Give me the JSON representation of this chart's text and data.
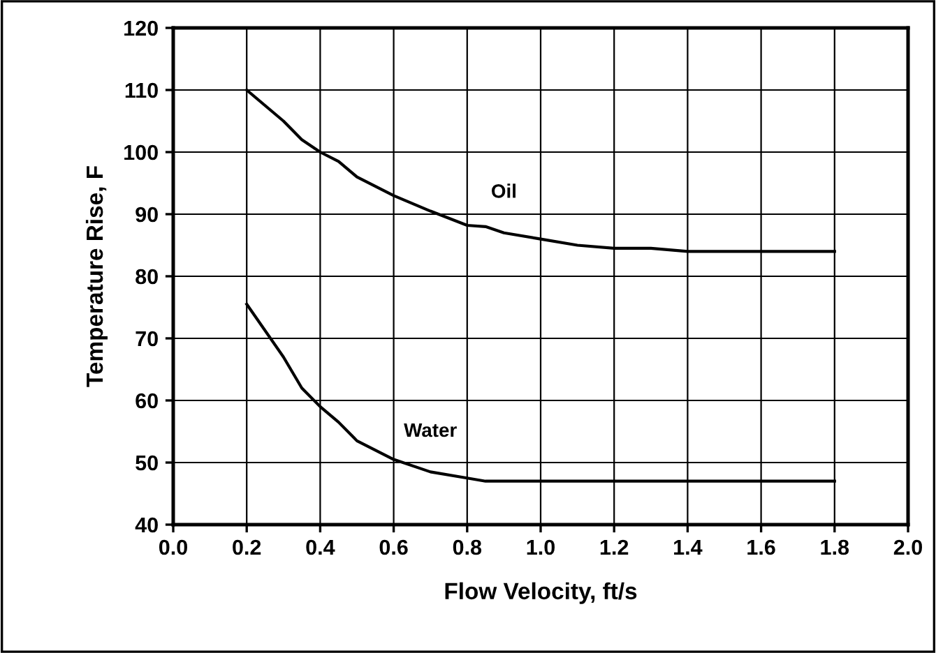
{
  "chart_data": {
    "type": "line",
    "xlabel": "Flow Velocity, ft/s",
    "ylabel": "Temperature Rise, F",
    "x": [
      0.2,
      0.3,
      0.35,
      0.4,
      0.45,
      0.5,
      0.6,
      0.7,
      0.8,
      0.85,
      0.9,
      1.0,
      1.1,
      1.2,
      1.3,
      1.4,
      1.8
    ],
    "series": [
      {
        "name": "Oil",
        "color": "#000000",
        "values": [
          110,
          105,
          102,
          100,
          98.5,
          96,
          93,
          90.5,
          88.2,
          88,
          87,
          86,
          85,
          84.5,
          84.5,
          84,
          84
        ]
      },
      {
        "name": "Water",
        "color": "#000000",
        "values": [
          75.5,
          67,
          62,
          59,
          56.5,
          53.5,
          50.5,
          48.5,
          47.5,
          47,
          47,
          47,
          47,
          47,
          47,
          47,
          47
        ]
      }
    ],
    "xlim": [
      0.0,
      2.0
    ],
    "xticks": [
      {
        "value": 0.0,
        "label": "0.0"
      },
      0.2,
      0.4,
      0.6,
      0.8,
      {
        "value": 1.0,
        "label": "1.0"
      },
      1.2,
      1.4,
      1.6,
      1.8,
      {
        "value": 2.0,
        "label": "2.0"
      }
    ],
    "ylim": [
      40,
      120
    ],
    "yticks": [
      40,
      50,
      60,
      70,
      80,
      90,
      100,
      110,
      120
    ],
    "grid": true,
    "legend": false,
    "marker": "none",
    "line_style": "solid"
  }
}
